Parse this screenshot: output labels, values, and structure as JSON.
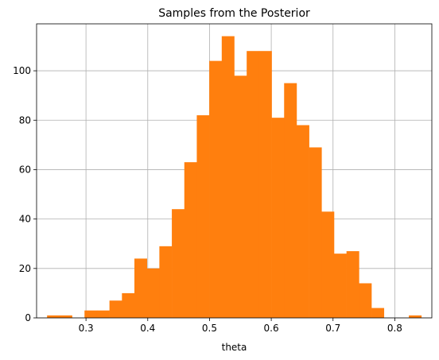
{
  "chart_data": {
    "type": "bar",
    "title": "Samples from the Posterior",
    "xlabel": "theta",
    "ylabel": "",
    "xlim": [
      0.22,
      0.86
    ],
    "ylim": [
      0,
      119
    ],
    "grid": true,
    "bar_color": "#ff7f0e",
    "bin_edges": [
      0.237,
      0.2572,
      0.2774,
      0.2976,
      0.3178,
      0.338,
      0.3582,
      0.3784,
      0.3986,
      0.4188,
      0.439,
      0.4592,
      0.4794,
      0.4996,
      0.5198,
      0.54,
      0.5602,
      0.5804,
      0.6006,
      0.6208,
      0.641,
      0.6612,
      0.6814,
      0.7016,
      0.7218,
      0.742,
      0.7622,
      0.7824,
      0.8026,
      0.8228,
      0.843
    ],
    "values": [
      1,
      1,
      0,
      3,
      3,
      7,
      10,
      24,
      20,
      29,
      44,
      63,
      82,
      104,
      114,
      98,
      108,
      108,
      81,
      95,
      78,
      69,
      43,
      26,
      27,
      14,
      4,
      0,
      0,
      1
    ],
    "x_ticks": [
      {
        "value": 0.3,
        "label": "0.3"
      },
      {
        "value": 0.4,
        "label": "0.4"
      },
      {
        "value": 0.5,
        "label": "0.5"
      },
      {
        "value": 0.6,
        "label": "0.6"
      },
      {
        "value": 0.7,
        "label": "0.7"
      },
      {
        "value": 0.8,
        "label": "0.8"
      }
    ],
    "y_ticks": [
      {
        "value": 0,
        "label": "0"
      },
      {
        "value": 20,
        "label": "20"
      },
      {
        "value": 40,
        "label": "40"
      },
      {
        "value": 60,
        "label": "60"
      },
      {
        "value": 80,
        "label": "80"
      },
      {
        "value": 100,
        "label": "100"
      }
    ]
  }
}
